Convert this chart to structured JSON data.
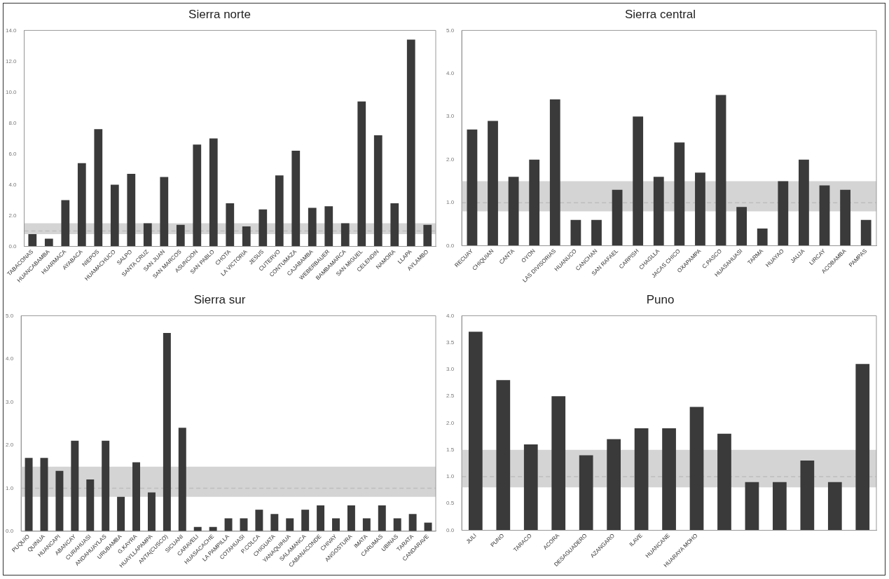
{
  "chart_data": [
    {
      "type": "bar",
      "title": "Sierra norte",
      "color": "#3a3a3a",
      "categories": [
        "TABACONAS",
        "HUANCABAMBA",
        "HUARMACA",
        "AYABACA",
        "NIEPOS",
        "HUAMACHUCO",
        "SALPO",
        "SANTA CRUZ",
        "SAN JUAN",
        "SAN MARCOS",
        "ASUNCION",
        "SAN PABLO",
        "CHOTA",
        "LA VICTORIA",
        "JESUS",
        "CUTERVO",
        "CONTUMAZA",
        "CAJABAMBA",
        "WEBERBAUER",
        "BAMBAMARCA",
        "SAN MIGUEL",
        "CELENDIN",
        "NAMORA",
        "LLAPA",
        "AYLAMBO"
      ],
      "values": [
        0.8,
        0.5,
        3.0,
        5.4,
        7.6,
        4.0,
        4.7,
        1.5,
        4.5,
        1.4,
        6.6,
        7.0,
        2.8,
        1.3,
        2.4,
        4.6,
        6.2,
        2.5,
        2.6,
        1.5,
        9.4,
        7.2,
        2.8,
        13.4,
        1.4
      ],
      "ylim": [
        0,
        14
      ],
      "yticks": [
        {
          "value": 0,
          "label": "0.0"
        },
        {
          "value": 2,
          "label": "2.0"
        },
        {
          "value": 4,
          "label": "4.0"
        },
        {
          "value": 6,
          "label": "6.0"
        },
        {
          "value": 8,
          "label": "8.0"
        },
        {
          "value": 10,
          "label": "10.0"
        },
        {
          "value": 12,
          "label": "12.0"
        },
        {
          "value": 14,
          "label": "14.0"
        }
      ],
      "bands": [
        {
          "axis": "y",
          "from": 0.8,
          "to": 1.5,
          "color": "#d4d4d4"
        }
      ],
      "ref_lines": [
        {
          "axis": "y",
          "value": 1.0,
          "color": "#bdbdbd",
          "line_style": "dashed"
        }
      ]
    },
    {
      "type": "bar",
      "title": "Sierra central",
      "color": "#3a3a3a",
      "categories": [
        "RECUAY",
        "CHIQUIAN",
        "CANTA",
        "OYON",
        "LAS DIVISORIAS",
        "HUANUCO",
        "CANCHAN",
        "SAN RAFAEL",
        "CARPISH",
        "CHAGLLA",
        "JACAS CHICO",
        "OXAPAMPA",
        "C.PASCO",
        "HUASAHUASI",
        "TARMA",
        "HUAYAO",
        "JAUJA",
        "LIRCAY",
        "ACOBAMBA",
        "PAMPAS"
      ],
      "values": [
        2.7,
        2.9,
        1.6,
        2.0,
        3.4,
        0.6,
        0.6,
        1.3,
        3.0,
        1.6,
        2.4,
        1.7,
        3.5,
        0.9,
        0.4,
        1.5,
        2.0,
        1.4,
        1.3,
        0.6
      ],
      "ylim": [
        0,
        5
      ],
      "yticks": [
        {
          "value": 0,
          "label": "0.0"
        },
        {
          "value": 1,
          "label": "1.0"
        },
        {
          "value": 2,
          "label": "2.0"
        },
        {
          "value": 3,
          "label": "3.0"
        },
        {
          "value": 4,
          "label": "4.0"
        },
        {
          "value": 5,
          "label": "5.0"
        }
      ],
      "bands": [
        {
          "axis": "y",
          "from": 0.8,
          "to": 1.5,
          "color": "#d4d4d4"
        }
      ],
      "ref_lines": [
        {
          "axis": "y",
          "value": 1.0,
          "color": "#bdbdbd",
          "line_style": "dashed"
        }
      ]
    },
    {
      "type": "bar",
      "title": "Sierra sur",
      "color": "#3a3a3a",
      "categories": [
        "PUQUIO",
        "QUINUA",
        "HUANCAPI",
        "ABANCAY",
        "CURAHUASI",
        "ANDAHUAYLAS",
        "URUBAMBA",
        "G.KAYRA",
        "HUAYLLAPAMPA",
        "ANTA(CUSCO)",
        "SICUANI",
        "CARAVELI",
        "HUASACACHE",
        "LA PAMPILLA",
        "COTAHUASI",
        "P.COLCA",
        "CHIGUATA",
        "YANAQUIHUA",
        "SALAMANCA",
        "CABANACONDE",
        "CHIVAY",
        "ANGOSTURA",
        "IMATA",
        "CARUMAS",
        "UBINAS",
        "TARATA",
        "CANDARAVE"
      ],
      "values": [
        1.7,
        1.7,
        1.4,
        2.1,
        1.2,
        2.1,
        0.8,
        1.6,
        0.9,
        4.6,
        2.4,
        0.1,
        0.1,
        0.3,
        0.3,
        0.5,
        0.4,
        0.3,
        0.5,
        0.6,
        0.3,
        0.6,
        0.3,
        0.6,
        0.3,
        0.4,
        0.2
      ],
      "ylim": [
        0,
        5
      ],
      "yticks": [
        {
          "value": 0,
          "label": "0.0"
        },
        {
          "value": 1,
          "label": "1.0"
        },
        {
          "value": 2,
          "label": "2.0"
        },
        {
          "value": 3,
          "label": "3.0"
        },
        {
          "value": 4,
          "label": "4.0"
        },
        {
          "value": 5,
          "label": "5.0"
        }
      ],
      "bands": [
        {
          "axis": "y",
          "from": 0.8,
          "to": 1.5,
          "color": "#d4d4d4"
        }
      ],
      "ref_lines": [
        {
          "axis": "y",
          "value": 1.0,
          "color": "#bdbdbd",
          "line_style": "dashed"
        }
      ]
    },
    {
      "type": "bar",
      "title": "Puno",
      "color": "#3a3a3a",
      "categories": [
        "JULI",
        "PUNO",
        "TARACO",
        "ACORA",
        "DESAGUADERO",
        "AZANGARO",
        "ILAVE",
        "HUANCANE",
        "HUARAYA MOHO",
        null,
        null,
        null,
        null,
        null,
        null
      ],
      "values": [
        3.7,
        2.8,
        1.6,
        2.5,
        1.4,
        1.7,
        1.9,
        1.9,
        2.3,
        1.8,
        0.9,
        0.9,
        1.3,
        0.9,
        3.1
      ],
      "ylim": [
        0,
        4
      ],
      "yticks": [
        {
          "value": 0,
          "label": "0.0"
        },
        {
          "value": 0.5,
          "label": "0.5"
        },
        {
          "value": 1,
          "label": "1.0"
        },
        {
          "value": 1.5,
          "label": "1.5"
        },
        {
          "value": 2,
          "label": "2.0"
        },
        {
          "value": 2.5,
          "label": "2.5"
        },
        {
          "value": 3,
          "label": "3.0"
        },
        {
          "value": 3.5,
          "label": "3.5"
        },
        {
          "value": 4,
          "label": "4.0"
        }
      ],
      "bands": [
        {
          "axis": "y",
          "from": 0.8,
          "to": 1.5,
          "color": "#d4d4d4"
        }
      ],
      "ref_lines": [
        {
          "axis": "y",
          "value": 1.0,
          "color": "#bdbdbd",
          "line_style": "dashed"
        }
      ]
    }
  ]
}
